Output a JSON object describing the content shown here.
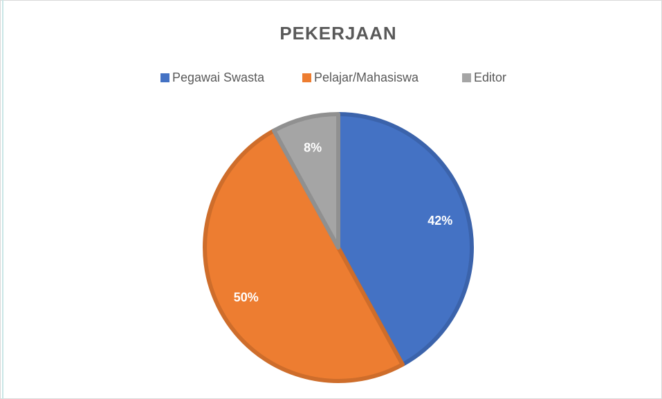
{
  "chart_data": {
    "type": "pie",
    "title": "PEKERJAAN",
    "categories": [
      "Pegawai Swasta",
      "Pelajar/Mahasiswa",
      "Editor"
    ],
    "values": [
      42,
      50,
      8
    ],
    "value_labels": [
      "42%",
      "50%",
      "8%"
    ],
    "colors": [
      "#4472c4",
      "#ed7d31",
      "#a5a5a5"
    ],
    "legend": "top"
  }
}
